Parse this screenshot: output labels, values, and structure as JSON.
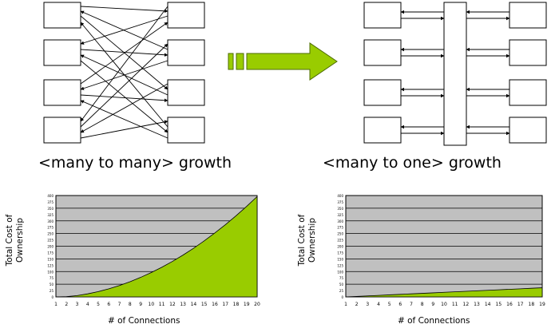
{
  "captions": {
    "left": "<many to many> growth",
    "right": "<many to one> growth"
  },
  "colors": {
    "fill": "#99CC00",
    "plot_bg": "#C0C0C0",
    "arrow_fill": "#99CC00",
    "line": "#000000"
  },
  "chart_data": [
    {
      "type": "area",
      "x": [
        1,
        2,
        3,
        4,
        5,
        6,
        7,
        8,
        9,
        10,
        11,
        12,
        13,
        14,
        15,
        16,
        17,
        18,
        19,
        20
      ],
      "values": [
        0,
        1,
        5,
        12,
        21,
        32,
        45,
        60,
        77,
        96,
        117,
        140,
        165,
        192,
        221,
        252,
        285,
        320,
        357,
        396
      ],
      "xlabel": "# of Connections",
      "ylabel_line1": "Total Cost of",
      "ylabel_line2": "Ownership",
      "ylim": [
        0,
        400
      ],
      "yticks": [
        0,
        25,
        50,
        75,
        100,
        125,
        150,
        175,
        200,
        225,
        250,
        275,
        300,
        325,
        350,
        375,
        400
      ],
      "grid": true
    },
    {
      "type": "area",
      "x": [
        1,
        2,
        3,
        4,
        5,
        6,
        7,
        8,
        9,
        10,
        11,
        12,
        13,
        14,
        15,
        16,
        17,
        18,
        19
      ],
      "values": [
        0,
        2,
        4,
        6,
        8,
        10,
        12,
        14,
        16,
        18,
        20,
        22,
        24,
        26,
        28,
        30,
        32,
        34,
        36
      ],
      "xlabel": "# of Connections",
      "ylabel_line1": "Total Cost of",
      "ylabel_line2": "Ownership",
      "ylim": [
        0,
        400
      ],
      "yticks": [
        0,
        25,
        50,
        75,
        100,
        125,
        150,
        175,
        200,
        225,
        250,
        275,
        300,
        325,
        350,
        375,
        400
      ],
      "grid": true
    }
  ]
}
